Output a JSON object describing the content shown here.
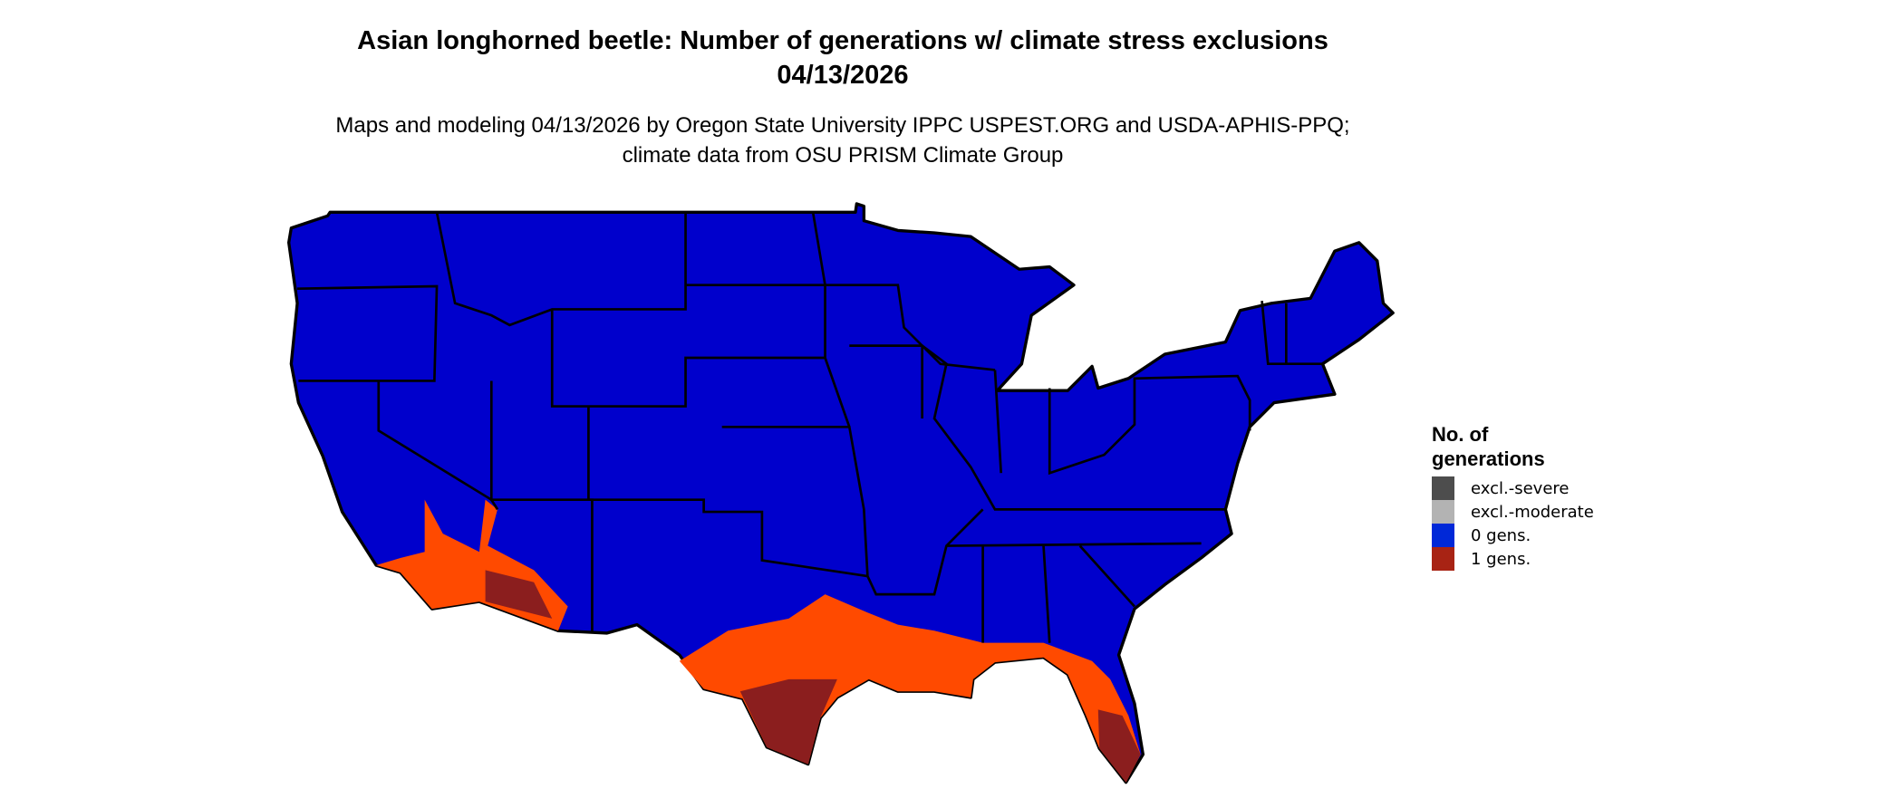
{
  "title": "Asian longhorned beetle: Number of generations w/ climate stress exclusions 04/13/2026",
  "subtitle": "Maps and modeling 04/13/2026 by Oregon State University IPPC USPEST.ORG and USDA-APHIS-PPQ; climate data from OSU PRISM Climate Group",
  "legend": {
    "title": "No. of generations",
    "items": [
      {
        "label": "excl.-severe",
        "color": "#4d4d4d"
      },
      {
        "label": "excl.-moderate",
        "color": "#b3b3b3"
      },
      {
        "label": "0 gens.",
        "color": "#0028d8"
      },
      {
        "label": "1 gens.",
        "color": "#a82314"
      }
    ]
  },
  "colors": {
    "zero_gens_fill": "#0000cc",
    "one_gen_light": "#ff4a00",
    "one_gen_dark": "#8b1e1e",
    "state_borders": "#000000"
  }
}
